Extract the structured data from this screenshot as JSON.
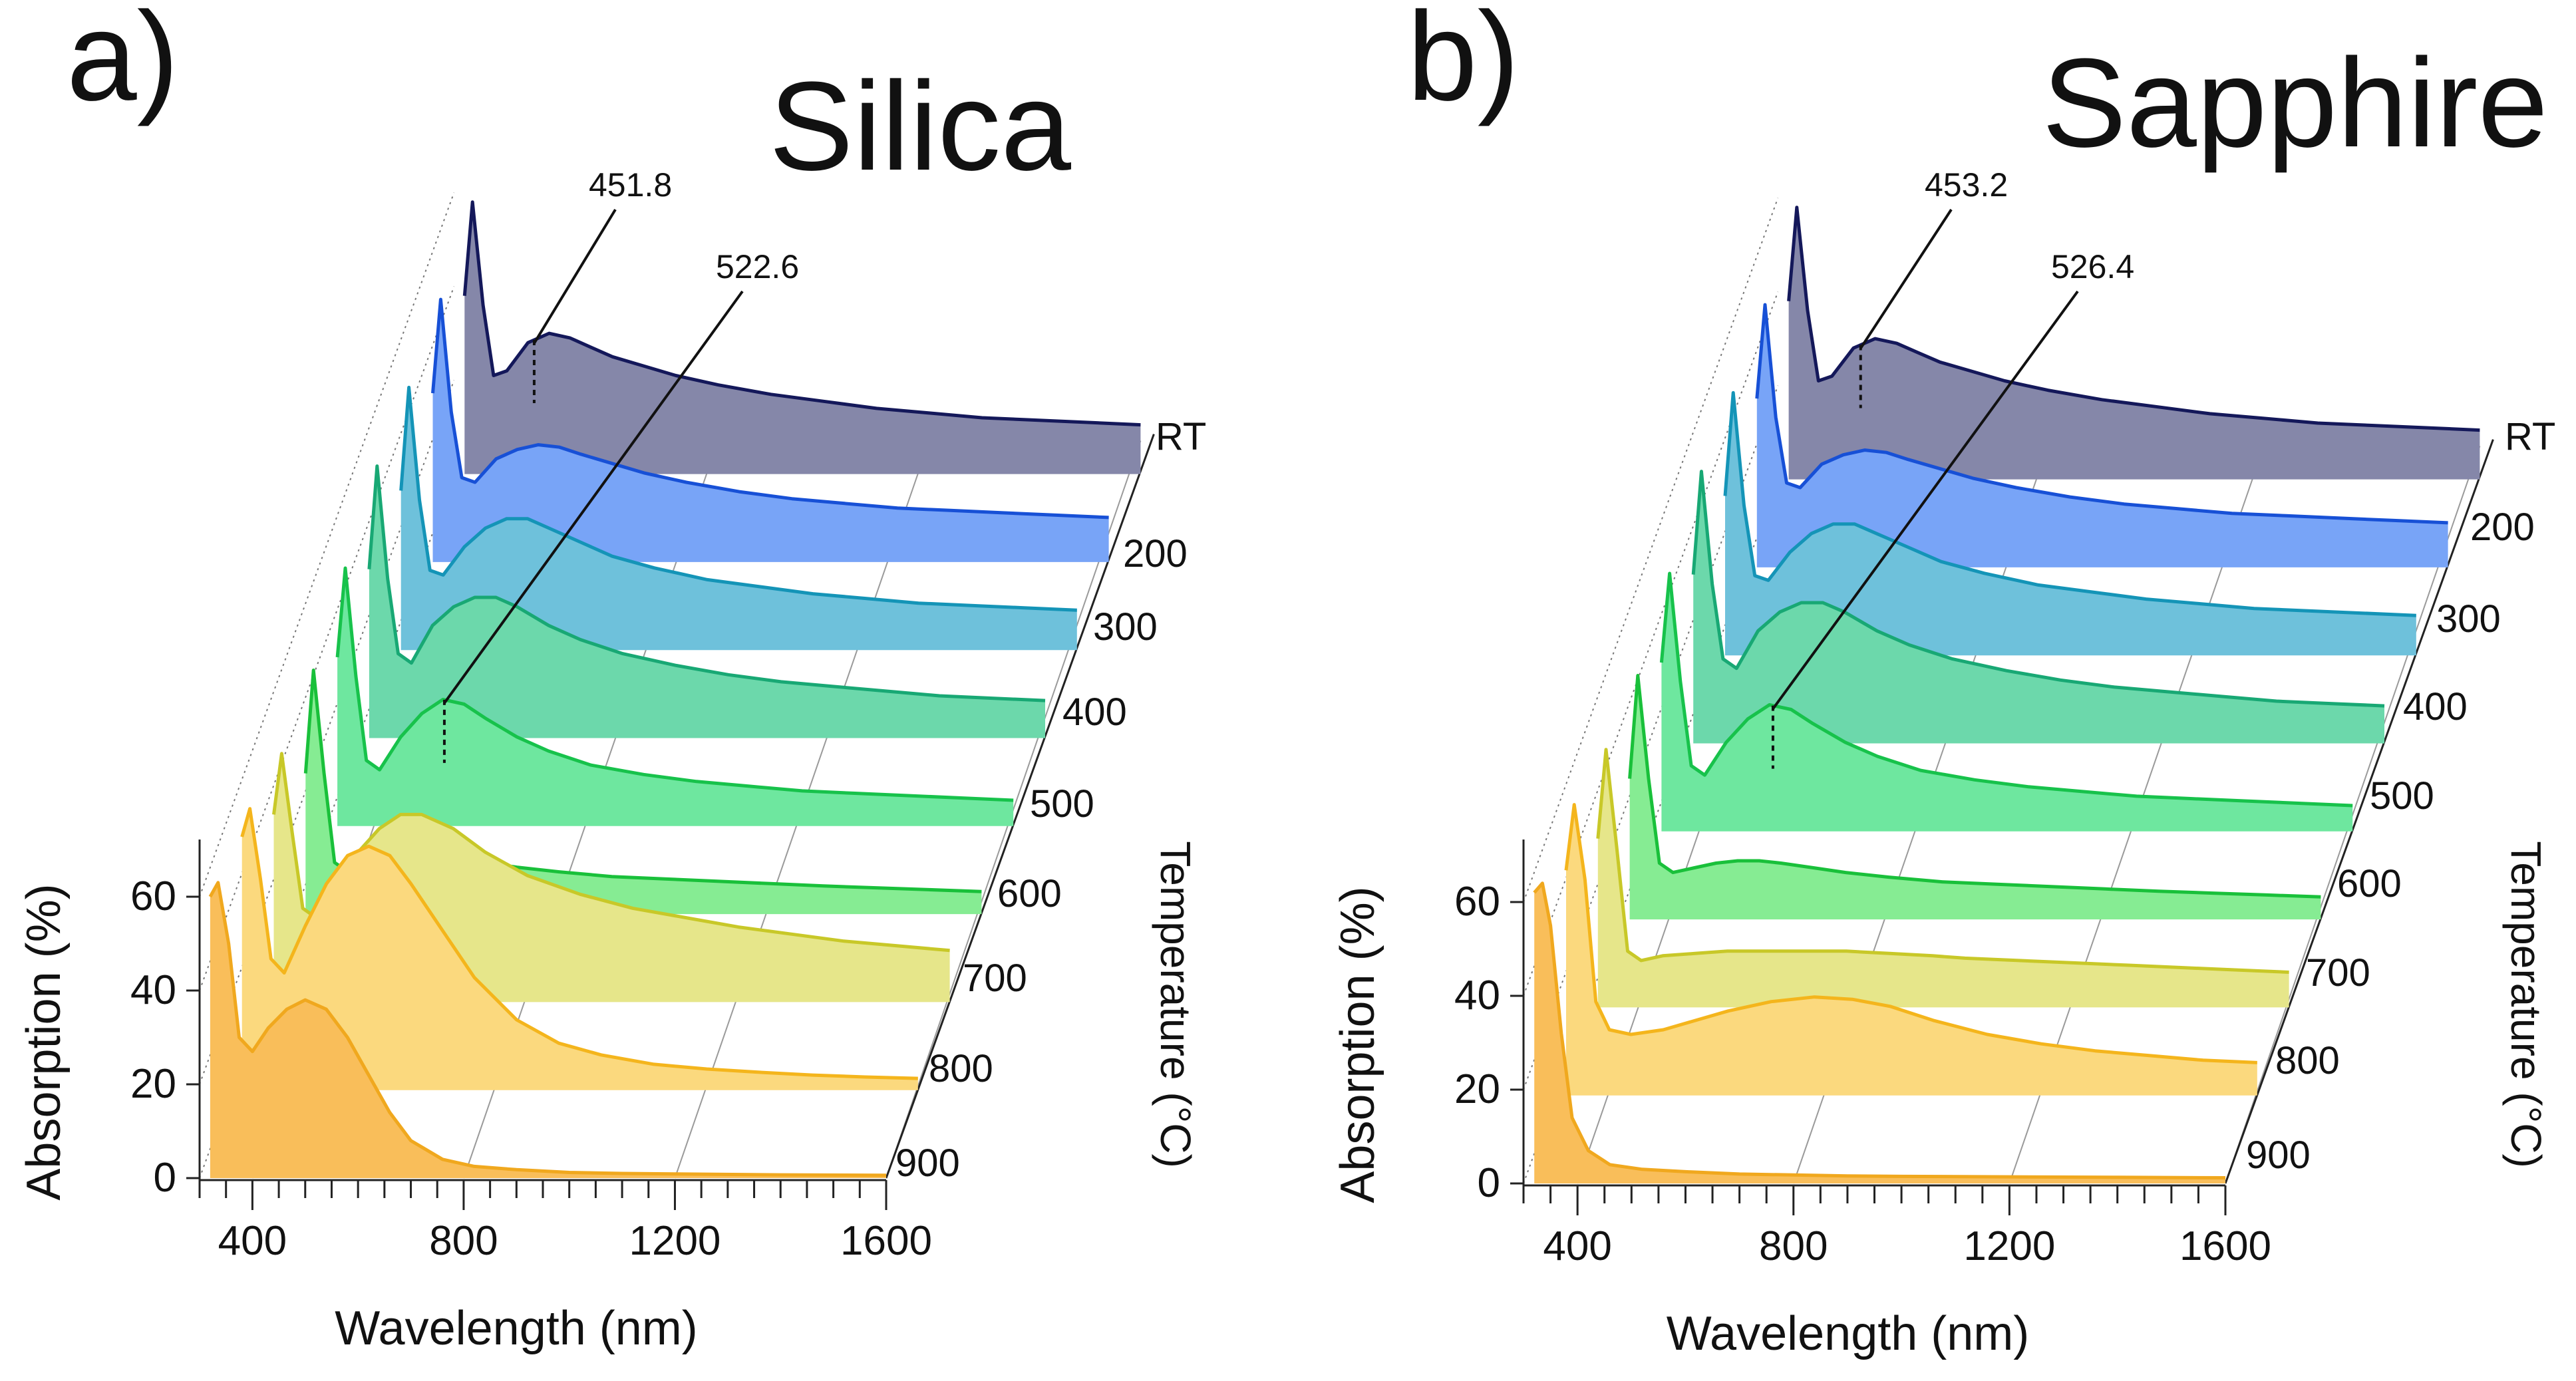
{
  "chart_data": [
    {
      "type": "area",
      "panel_label": "a)",
      "title": "Silica",
      "xlabel": "Wavelength (nm)",
      "ylabel": "Absorption (%)",
      "zlabel": "Temperature (°C)",
      "xlim": [
        300,
        1600
      ],
      "ylim": [
        0,
        70
      ],
      "xticks": [
        "400",
        "800",
        "1200",
        "1600"
      ],
      "yticks": [
        "0",
        "20",
        "40",
        "60"
      ],
      "annotations": [
        {
          "label": "451.8",
          "x": 451.8,
          "series": "RT"
        },
        {
          "label": "522.6",
          "x": 522.6,
          "series": "500"
        }
      ],
      "series": [
        {
          "name": "900",
          "color": "#f9be5a",
          "stroke": "#f0a81e",
          "x": [
            320,
            335,
            355,
            375,
            400,
            430,
            465,
            500,
            540,
            580,
            620,
            660,
            700,
            760,
            820,
            900,
            1000,
            1100,
            1200,
            1400,
            1600
          ],
          "values": [
            60,
            63,
            50,
            30,
            27,
            32,
            36,
            38,
            36,
            30,
            22,
            14,
            8,
            4,
            2.5,
            1.8,
            1.2,
            1.0,
            0.9,
            0.7,
            0.6
          ]
        },
        {
          "name": "800",
          "color": "#fbd97e",
          "stroke": "#f4b51c",
          "x": [
            320,
            335,
            355,
            375,
            400,
            440,
            480,
            520,
            560,
            600,
            640,
            700,
            760,
            840,
            920,
            1000,
            1100,
            1200,
            1300,
            1400,
            1500,
            1600
          ],
          "values": [
            54,
            60,
            45,
            28,
            25,
            35,
            44,
            50,
            52,
            50,
            44,
            34,
            24,
            15,
            10,
            7.5,
            5.5,
            4.5,
            3.8,
            3.2,
            2.8,
            2.5
          ]
        },
        {
          "name": "700",
          "color": "#e6e68a",
          "stroke": "#c8c828",
          "x": [
            320,
            335,
            355,
            375,
            400,
            440,
            480,
            520,
            560,
            600,
            660,
            720,
            800,
            900,
            1000,
            1100,
            1200,
            1300,
            1400,
            1500,
            1600
          ],
          "values": [
            40,
            53,
            36,
            20,
            18,
            26,
            32,
            37,
            40,
            40,
            37,
            32,
            27,
            23,
            20,
            18,
            16,
            14.5,
            13,
            12,
            11
          ]
        },
        {
          "name": "600",
          "color": "#86ec93",
          "stroke": "#19c03a",
          "x": [
            320,
            335,
            355,
            375,
            400,
            440,
            480,
            520,
            560,
            600,
            660,
            720,
            800,
            900,
            1000,
            1100,
            1200,
            1300,
            1400,
            1500,
            1600
          ],
          "values": [
            30,
            52,
            30,
            11,
            9,
            10,
            11.5,
            12.5,
            12.5,
            12,
            11,
            10,
            9,
            8,
            7.5,
            7,
            6.5,
            6,
            5.6,
            5.2,
            4.8
          ]
        },
        {
          "name": "500",
          "color": "#6ee79f",
          "stroke": "#17c24b",
          "x": [
            320,
            335,
            355,
            375,
            400,
            440,
            480,
            520,
            560,
            600,
            660,
            720,
            800,
            900,
            1000,
            1100,
            1200,
            1300,
            1400,
            1500,
            1600
          ],
          "values": [
            36,
            55,
            32,
            14,
            12,
            19,
            24,
            27,
            26,
            23,
            19,
            16,
            13,
            11,
            9.5,
            8.5,
            7.5,
            7,
            6.5,
            6,
            5.5
          ]
        },
        {
          "name": "400",
          "color": "#6cd8ab",
          "stroke": "#18a874",
          "x": [
            320,
            335,
            355,
            375,
            400,
            440,
            480,
            520,
            560,
            600,
            660,
            720,
            800,
            900,
            1000,
            1100,
            1200,
            1300,
            1400,
            1500,
            1600
          ],
          "values": [
            36,
            58,
            34,
            18,
            16,
            24,
            28,
            30,
            30,
            28,
            24,
            21,
            18,
            15.5,
            13.5,
            12,
            11,
            10,
            9,
            8.5,
            8
          ]
        },
        {
          "name": "300",
          "color": "#6ec1db",
          "stroke": "#1494b7",
          "x": [
            320,
            335,
            355,
            375,
            400,
            440,
            480,
            520,
            560,
            600,
            660,
            720,
            800,
            900,
            1000,
            1100,
            1200,
            1300,
            1400,
            1500,
            1600
          ],
          "values": [
            34,
            56,
            32,
            17,
            16,
            22,
            26,
            28,
            28,
            26,
            23,
            20,
            17.5,
            15,
            13.5,
            12,
            11,
            10,
            9.5,
            9,
            8.5
          ]
        },
        {
          "name": "200",
          "color": "#78a4f7",
          "stroke": "#1750d6",
          "x": [
            320,
            335,
            355,
            375,
            400,
            440,
            480,
            520,
            560,
            600,
            660,
            720,
            800,
            900,
            1000,
            1100,
            1200,
            1300,
            1400,
            1500,
            1600
          ],
          "values": [
            36,
            56,
            32,
            18,
            17,
            22,
            24,
            25,
            24.5,
            23,
            21,
            19,
            17,
            15,
            13.5,
            12.5,
            11.5,
            11,
            10.5,
            10,
            9.5
          ]
        },
        {
          "name": "RT",
          "color": "#8587a9",
          "stroke": "#14185a",
          "x": [
            320,
            335,
            355,
            375,
            400,
            440,
            480,
            520,
            560,
            600,
            660,
            720,
            800,
            900,
            1000,
            1100,
            1200,
            1300,
            1400,
            1500,
            1600
          ],
          "values": [
            38,
            58,
            36,
            21,
            22,
            28,
            30,
            29,
            27,
            25,
            23,
            21,
            19,
            17,
            15.5,
            14,
            13,
            12,
            11.5,
            11,
            10.5
          ]
        }
      ]
    },
    {
      "type": "area",
      "panel_label": "b)",
      "title": "Sapphire",
      "xlabel": "Wavelength (nm)",
      "ylabel": "Absorption (%)",
      "zlabel": "Temperature (°C)",
      "xlim": [
        300,
        1600
      ],
      "ylim": [
        0,
        70
      ],
      "xticks": [
        "400",
        "800",
        "1200",
        "1600"
      ],
      "yticks": [
        "0",
        "20",
        "40",
        "60"
      ],
      "annotations": [
        {
          "label": "453.2",
          "x": 453.2,
          "series": "RT"
        },
        {
          "label": "526.4",
          "x": 526.4,
          "series": "500"
        }
      ],
      "series": [
        {
          "name": "900",
          "color": "#f9be5a",
          "stroke": "#f0a81e",
          "x": [
            320,
            335,
            350,
            370,
            390,
            420,
            460,
            520,
            600,
            700,
            800,
            900,
            1000,
            1200,
            1400,
            1600
          ],
          "values": [
            62,
            64,
            55,
            32,
            14,
            7,
            4,
            3,
            2.5,
            2.0,
            1.8,
            1.6,
            1.5,
            1.4,
            1.3,
            1.2
          ]
        },
        {
          "name": "800",
          "color": "#fbd97e",
          "stroke": "#f4b51c",
          "x": [
            320,
            335,
            355,
            375,
            400,
            440,
            500,
            560,
            620,
            700,
            780,
            850,
            920,
            1000,
            1100,
            1200,
            1300,
            1400,
            1500,
            1600
          ],
          "values": [
            48,
            62,
            46,
            20,
            14,
            13,
            14,
            16,
            18,
            20,
            21,
            20.5,
            19,
            16,
            13,
            11,
            9.5,
            8.5,
            7.5,
            7
          ]
        },
        {
          "name": "700",
          "color": "#e6e68a",
          "stroke": "#c8c828",
          "x": [
            320,
            335,
            355,
            375,
            400,
            440,
            500,
            560,
            620,
            700,
            780,
            860,
            940,
            1000,
            1100,
            1200,
            1300,
            1400,
            1500,
            1600
          ],
          "values": [
            36,
            55,
            34,
            12,
            10,
            11,
            11.5,
            12,
            12,
            12,
            12,
            11.5,
            11,
            10.5,
            10,
            9.5,
            9,
            8.5,
            8,
            7.5
          ]
        },
        {
          "name": "600",
          "color": "#86ec93",
          "stroke": "#19c03a",
          "x": [
            320,
            335,
            355,
            375,
            400,
            440,
            480,
            520,
            560,
            600,
            660,
            720,
            800,
            900,
            1000,
            1100,
            1200,
            1300,
            1400,
            1500,
            1600
          ],
          "values": [
            30,
            52,
            30,
            12,
            10,
            11,
            12,
            12.5,
            12.5,
            12,
            11,
            10,
            9,
            8,
            7.5,
            7,
            6.5,
            6,
            5.6,
            5.2,
            4.8
          ]
        },
        {
          "name": "500",
          "color": "#6ee79f",
          "stroke": "#17c24b",
          "x": [
            320,
            335,
            355,
            375,
            400,
            440,
            480,
            520,
            560,
            600,
            660,
            720,
            800,
            900,
            1000,
            1100,
            1200,
            1300,
            1400,
            1500,
            1600
          ],
          "values": [
            36,
            55,
            32,
            14,
            12,
            19,
            24,
            27,
            26,
            23,
            19,
            16,
            13,
            11,
            9.5,
            8.5,
            7.5,
            7,
            6.5,
            6,
            5.5
          ]
        },
        {
          "name": "400",
          "color": "#6cd8ab",
          "stroke": "#18a874",
          "x": [
            320,
            335,
            355,
            375,
            400,
            440,
            480,
            520,
            560,
            600,
            660,
            720,
            800,
            900,
            1000,
            1100,
            1200,
            1300,
            1400,
            1500,
            1600
          ],
          "values": [
            36,
            58,
            34,
            18,
            16,
            24,
            28,
            30,
            30,
            28,
            24,
            21,
            18,
            15.5,
            13.5,
            12,
            11,
            10,
            9,
            8.5,
            8
          ]
        },
        {
          "name": "300",
          "color": "#6ec1db",
          "stroke": "#1494b7",
          "x": [
            320,
            335,
            355,
            375,
            400,
            440,
            480,
            520,
            560,
            600,
            660,
            720,
            800,
            900,
            1000,
            1100,
            1200,
            1300,
            1400,
            1500,
            1600
          ],
          "values": [
            34,
            56,
            32,
            17,
            16,
            22,
            26,
            28,
            28,
            26,
            23,
            20,
            17.5,
            15,
            13.5,
            12,
            11,
            10,
            9.5,
            9,
            8.5
          ]
        },
        {
          "name": "200",
          "color": "#78a4f7",
          "stroke": "#1750d6",
          "x": [
            320,
            335,
            355,
            375,
            400,
            440,
            480,
            520,
            560,
            600,
            660,
            720,
            800,
            900,
            1000,
            1100,
            1200,
            1300,
            1400,
            1500,
            1600
          ],
          "values": [
            36,
            56,
            32,
            18,
            17,
            22,
            24,
            25,
            24.5,
            23,
            21,
            19,
            17,
            15,
            13.5,
            12.5,
            11.5,
            11,
            10.5,
            10,
            9.5
          ]
        },
        {
          "name": "RT",
          "color": "#8587a9",
          "stroke": "#14185a",
          "x": [
            320,
            335,
            355,
            375,
            400,
            440,
            480,
            520,
            560,
            600,
            660,
            720,
            800,
            900,
            1000,
            1100,
            1200,
            1300,
            1400,
            1500,
            1600
          ],
          "values": [
            38,
            58,
            36,
            21,
            22,
            28,
            30,
            29,
            27,
            25,
            23,
            21,
            19,
            17,
            15.5,
            14,
            13,
            12,
            11.5,
            11,
            10.5
          ]
        }
      ]
    }
  ]
}
